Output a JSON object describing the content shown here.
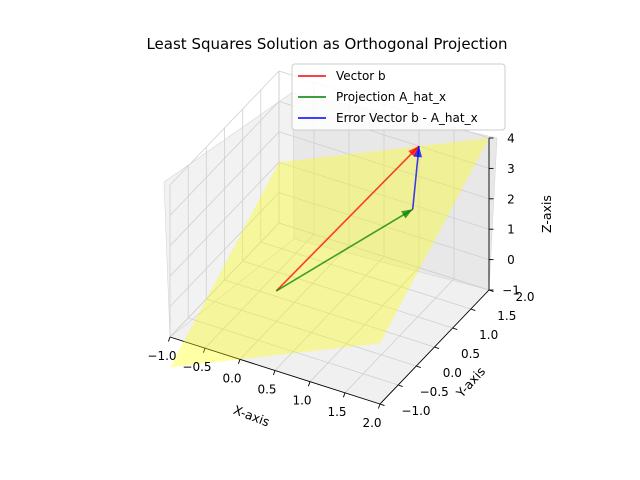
{
  "chart_data": {
    "type": "3d-line",
    "title": "Least Squares Solution as Orthogonal Projection",
    "xlabel": "X-axis",
    "ylabel": "Y-axis",
    "zlabel": "Z-axis",
    "xlim": [
      -1.0,
      2.0
    ],
    "ylim": [
      -1.0,
      2.0
    ],
    "zlim": [
      -1,
      4
    ],
    "x_ticks": [
      "−1.0",
      "−0.5",
      "0.0",
      "0.5",
      "1.0",
      "1.5",
      "2.0"
    ],
    "y_ticks": [
      "−1.0",
      "−0.5",
      "0.0",
      "0.5",
      "1.0",
      "1.5",
      "2.0"
    ],
    "z_ticks": [
      "−1",
      "0",
      "1",
      "2",
      "3",
      "4"
    ],
    "grid": true,
    "legend_position": "top-right",
    "series": [
      {
        "name": "Vector b",
        "color": "#ff0000",
        "start": [
          0,
          0,
          0
        ],
        "end": [
          1,
          2,
          3
        ]
      },
      {
        "name": "Projection A_hat_x",
        "color": "#008000",
        "start": [
          0,
          0,
          0
        ],
        "end": [
          1.17,
          1.5,
          1.67
        ]
      },
      {
        "name": "Error Vector b - A_hat_x",
        "color": "#0000ff",
        "start": [
          1.17,
          1.5,
          1.67
        ],
        "end": [
          1,
          2,
          3
        ]
      }
    ],
    "plane": {
      "color": "#ffff00",
      "opacity": 0.35,
      "corners": [
        [
          -1,
          -1,
          -2
        ],
        [
          2,
          -1,
          1
        ],
        [
          2,
          2,
          4
        ],
        [
          -1,
          2,
          1
        ]
      ]
    }
  }
}
